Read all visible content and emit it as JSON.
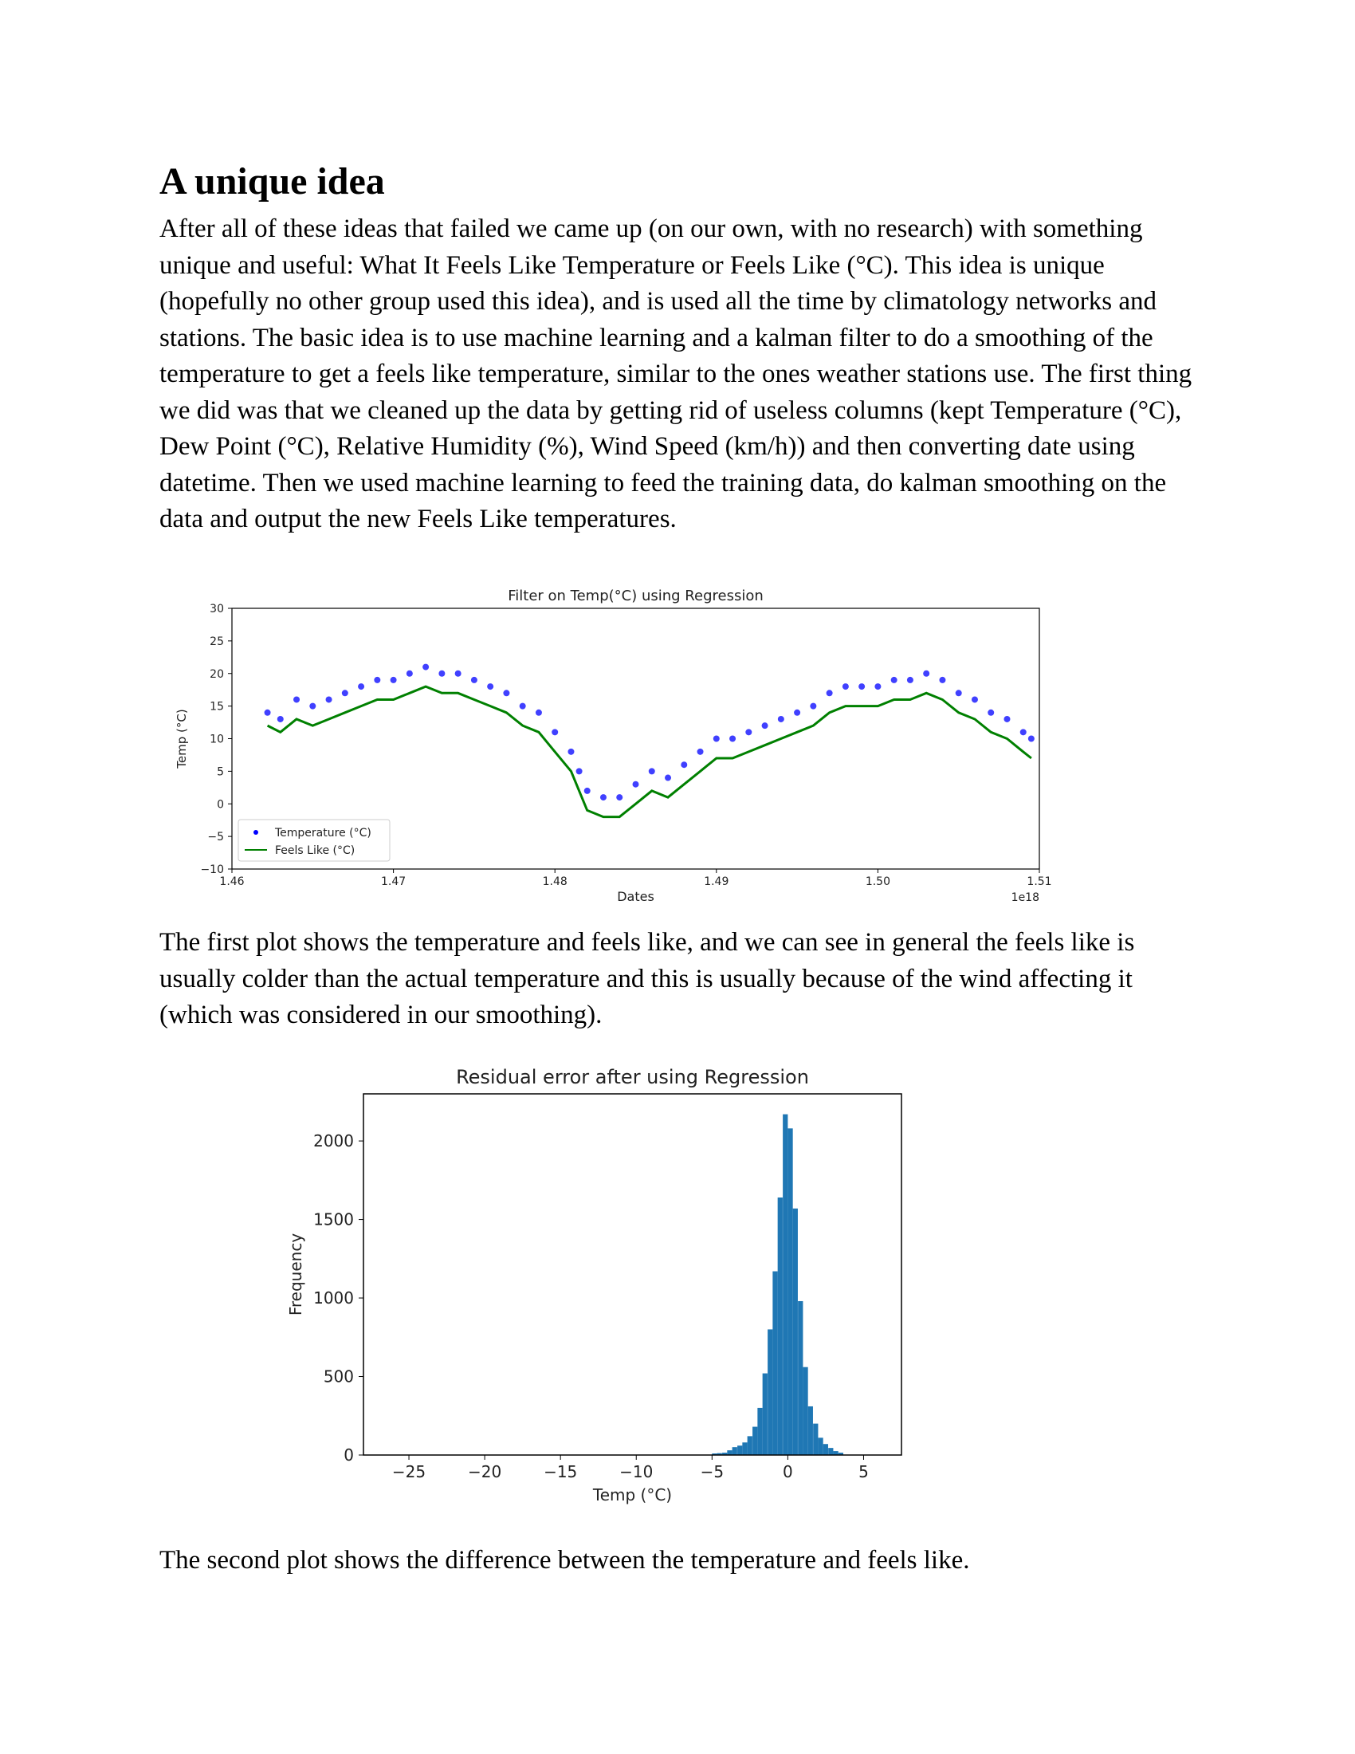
{
  "section": {
    "title": "A unique idea",
    "paragraph1": "After all of these ideas that failed we came up (on our own, with no research) with something unique and useful: What It Feels Like Temperature or Feels Like (°C). This idea is unique (hopefully no other group used this idea), and is used all the time by climatology networks and stations. The basic idea is to use machine learning and a kalman filter to do a smoothing of the temperature to get a feels like temperature, similar to the ones weather stations use. The first thing we did was that we cleaned up the data  by getting rid of useless columns (kept Temperature (°C), Dew Point (°C), Relative Humidity (%), Wind Speed (km/h)) and then converting date using datetime. Then we used machine learning to feed the training data, do kalman smoothing on the data and output the new Feels Like temperatures.",
    "paragraph2": "The first plot shows the temperature and feels like, and we can see in general the feels like is usually colder than the actual temperature and this is usually because of the wind affecting it (which was considered in our smoothing).",
    "paragraph3": "The second plot shows the difference between the temperature and feels like."
  },
  "chart_data": [
    {
      "type": "line",
      "title": "Filter on Temp(°C) using Regression",
      "xlabel": "Dates",
      "ylabel": "Temp (°C)",
      "x_offset_label": "1e18",
      "xlim": [
        1.46,
        1.51
      ],
      "ylim": [
        -10,
        30
      ],
      "xticks": [
        1.46,
        1.47,
        1.48,
        1.49,
        1.5,
        1.51
      ],
      "xtick_labels": [
        "1.46",
        "1.47",
        "1.48",
        "1.49",
        "1.50",
        "1.51"
      ],
      "yticks": [
        -10,
        -5,
        0,
        5,
        10,
        15,
        20,
        25,
        30
      ],
      "ytick_labels": [
        "−10",
        "−5",
        "0",
        "5",
        "10",
        "15",
        "20",
        "25",
        "30"
      ],
      "legend": "lower-left",
      "grid": false,
      "series": [
        {
          "name": "Temperature (°C)",
          "style": "scatter",
          "color": "#0000ff",
          "x": [
            1.4622,
            1.463,
            1.464,
            1.465,
            1.466,
            1.467,
            1.468,
            1.469,
            1.47,
            1.471,
            1.472,
            1.473,
            1.474,
            1.475,
            1.476,
            1.477,
            1.478,
            1.479,
            1.48,
            1.481,
            1.4815,
            1.482,
            1.483,
            1.484,
            1.485,
            1.486,
            1.487,
            1.488,
            1.489,
            1.49,
            1.491,
            1.492,
            1.493,
            1.494,
            1.495,
            1.496,
            1.497,
            1.498,
            1.499,
            1.5,
            1.501,
            1.502,
            1.503,
            1.504,
            1.505,
            1.506,
            1.507,
            1.508,
            1.509,
            1.5095
          ],
          "y": [
            14,
            13,
            16,
            15,
            16,
            17,
            18,
            19,
            19,
            20,
            21,
            20,
            20,
            19,
            18,
            17,
            15,
            14,
            11,
            8,
            5,
            2,
            1,
            1,
            3,
            5,
            4,
            6,
            8,
            10,
            10,
            11,
            12,
            13,
            14,
            15,
            17,
            18,
            18,
            18,
            19,
            19,
            20,
            19,
            17,
            16,
            14,
            13,
            11,
            10
          ]
        },
        {
          "name": "Feels Like (°C)",
          "style": "line",
          "color": "#008000",
          "x": [
            1.4622,
            1.463,
            1.464,
            1.465,
            1.466,
            1.467,
            1.468,
            1.469,
            1.47,
            1.471,
            1.472,
            1.473,
            1.474,
            1.475,
            1.476,
            1.477,
            1.478,
            1.479,
            1.48,
            1.481,
            1.4815,
            1.482,
            1.483,
            1.484,
            1.485,
            1.486,
            1.487,
            1.488,
            1.489,
            1.49,
            1.491,
            1.492,
            1.493,
            1.494,
            1.495,
            1.496,
            1.497,
            1.498,
            1.499,
            1.5,
            1.501,
            1.502,
            1.503,
            1.504,
            1.505,
            1.506,
            1.507,
            1.508,
            1.509,
            1.5095
          ],
          "y": [
            12,
            11,
            13,
            12,
            13,
            14,
            15,
            16,
            16,
            17,
            18,
            17,
            17,
            16,
            15,
            14,
            12,
            11,
            8,
            5,
            2,
            -1,
            -2,
            -2,
            0,
            2,
            1,
            3,
            5,
            7,
            7,
            8,
            9,
            10,
            11,
            12,
            14,
            15,
            15,
            15,
            16,
            16,
            17,
            16,
            14,
            13,
            11,
            10,
            8,
            7
          ]
        }
      ]
    },
    {
      "type": "bar",
      "title": "Residual error after using Regression",
      "xlabel": "Temp (°C)",
      "ylabel": "Frequency",
      "xlim": [
        -28,
        7.5
      ],
      "ylim": [
        0,
        2300
      ],
      "xticks": [
        -25,
        -20,
        -15,
        -10,
        -5,
        0,
        5
      ],
      "xtick_labels": [
        "−25",
        "−20",
        "−15",
        "−10",
        "−5",
        "0",
        "5"
      ],
      "yticks": [
        0,
        500,
        1000,
        1500,
        2000
      ],
      "ytick_labels": [
        "0",
        "500",
        "1000",
        "1500",
        "2000"
      ],
      "color": "#1f77b4",
      "bin_width": 0.33,
      "bin_starts": [
        -5.0,
        -4.67,
        -4.33,
        -4.0,
        -3.67,
        -3.33,
        -3.0,
        -2.67,
        -2.33,
        -2.0,
        -1.67,
        -1.33,
        -1.0,
        -0.67,
        -0.33,
        0.0,
        0.33,
        0.67,
        1.0,
        1.33,
        1.67,
        2.0,
        2.33,
        2.67,
        3.0,
        3.33
      ],
      "values": [
        10,
        12,
        15,
        30,
        50,
        60,
        80,
        120,
        180,
        300,
        520,
        800,
        1170,
        1640,
        2170,
        2080,
        1570,
        980,
        560,
        310,
        200,
        110,
        70,
        45,
        25,
        15
      ]
    }
  ]
}
